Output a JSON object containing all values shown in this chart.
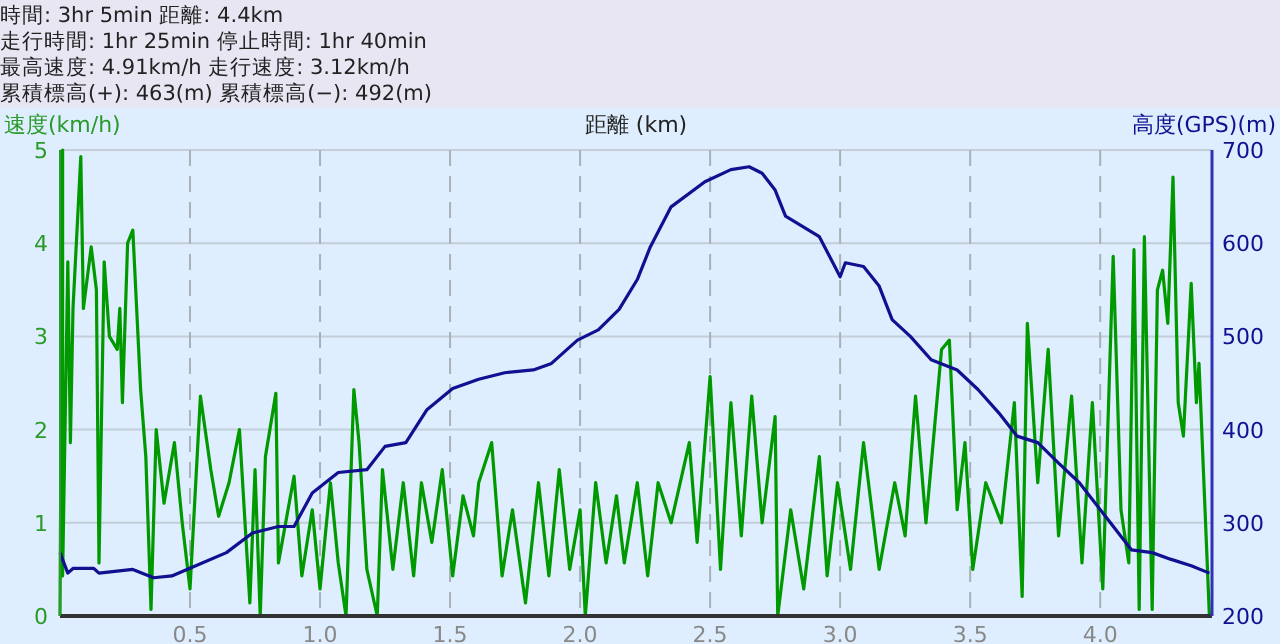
{
  "chart_data": {
    "type": "line",
    "annotations": [
      "時間: 3hr 5min  距離: 4.4km",
      "走行時間: 1hr 25min  停止時間: 1hr 40min",
      "最高速度: 4.91km/h  走行速度: 3.12km/h",
      "累積標高(+): 463(m)  累積標高(−): 492(m)"
    ],
    "xlabel": "距離 (km)",
    "ylabel": "速度(km/h)",
    "y2label": "高度(GPS)(m)",
    "xlim": [
      0,
      4.43
    ],
    "xticks": [
      0.5,
      {
        "value": 1,
        "label": "1.0"
      },
      1.5,
      {
        "value": 2,
        "label": "2.0"
      },
      2.5,
      {
        "value": 3,
        "label": "3.0"
      },
      3.5,
      {
        "value": 4,
        "label": "4.0"
      }
    ],
    "ylim": [
      0,
      5
    ],
    "yticks": [
      0,
      1,
      2,
      3,
      4,
      5
    ],
    "y2lim": [
      200,
      700
    ],
    "y2ticks": [
      200,
      300,
      400,
      500,
      600,
      700
    ],
    "grid": true,
    "marker": "none",
    "line_style": "solid",
    "series": [
      {
        "color": "#009900",
        "axis": "y",
        "x": [
          0,
          0.01,
          0.01,
          0.03,
          0.04,
          0.05,
          0.08,
          0.09,
          0.12,
          0.14,
          0.15,
          0.17,
          0.19,
          0.22,
          0.23,
          0.24,
          0.26,
          0.28,
          0.31,
          0.33,
          0.35,
          0.37,
          0.4,
          0.44,
          0.47,
          0.5,
          0.54,
          0.58,
          0.61,
          0.65,
          0.69,
          0.73,
          0.75,
          0.77,
          0.79,
          0.83,
          0.84,
          0.9,
          0.93,
          0.97,
          1.0,
          1.04,
          1.07,
          1.1,
          1.13,
          1.15,
          1.18,
          1.22,
          1.24,
          1.28,
          1.32,
          1.36,
          1.39,
          1.43,
          1.47,
          1.51,
          1.55,
          1.59,
          1.61,
          1.66,
          1.7,
          1.74,
          1.79,
          1.84,
          1.88,
          1.92,
          1.96,
          2.0,
          2.02,
          2.06,
          2.1,
          2.14,
          2.17,
          2.22,
          2.26,
          2.3,
          2.35,
          2.42,
          2.45,
          2.5,
          2.54,
          2.58,
          2.62,
          2.66,
          2.7,
          2.75,
          2.76,
          2.81,
          2.86,
          2.92,
          2.95,
          2.99,
          3.04,
          3.09,
          3.15,
          3.21,
          3.25,
          3.29,
          3.33,
          3.39,
          3.42,
          3.45,
          3.48,
          3.51,
          3.56,
          3.62,
          3.67,
          3.7,
          3.72,
          3.76,
          3.8,
          3.84,
          3.89,
          3.93,
          3.97,
          4.01,
          4.05,
          4.08,
          4.11,
          4.13,
          4.15,
          4.17,
          4.2,
          4.22,
          4.24,
          4.26,
          4.28,
          4.3,
          4.32,
          4.35,
          4.37,
          4.38,
          4.42
        ],
        "values": [
          0,
          5.0,
          0.43,
          3.8,
          1.86,
          3.3,
          4.93,
          3.3,
          3.96,
          3.5,
          0.57,
          3.8,
          3.0,
          2.86,
          3.3,
          2.29,
          4.0,
          4.14,
          2.43,
          1.71,
          0.07,
          2.0,
          1.21,
          1.86,
          1.0,
          0.29,
          2.36,
          1.57,
          1.07,
          1.43,
          2.0,
          0.14,
          1.57,
          0,
          1.71,
          2.39,
          0.57,
          1.5,
          0.43,
          1.14,
          0.29,
          1.43,
          0.57,
          0,
          2.43,
          1.86,
          0.5,
          0,
          1.57,
          0.5,
          1.43,
          0.43,
          1.43,
          0.79,
          1.57,
          0.43,
          1.29,
          0.86,
          1.43,
          1.86,
          0.43,
          1.14,
          0.14,
          1.43,
          0.43,
          1.57,
          0.5,
          1.14,
          0,
          1.43,
          0.57,
          1.29,
          0.57,
          1.43,
          0.43,
          1.43,
          1.0,
          1.86,
          0.79,
          2.57,
          0.5,
          2.29,
          0.86,
          2.36,
          1.0,
          2.14,
          0,
          1.14,
          0.29,
          1.71,
          0.43,
          1.43,
          0.5,
          1.86,
          0.5,
          1.43,
          0.86,
          2.36,
          1.0,
          2.86,
          2.96,
          1.14,
          1.86,
          0.5,
          1.43,
          1.0,
          2.29,
          0.21,
          3.14,
          1.43,
          2.86,
          0.86,
          2.36,
          0.57,
          2.29,
          0.29,
          3.86,
          1.14,
          0.57,
          3.93,
          0.07,
          4.07,
          0.07,
          3.5,
          3.71,
          3.14,
          4.71,
          2.29,
          1.93,
          3.57,
          2.29,
          2.71,
          0
        ]
      },
      {
        "color": "#101090",
        "axis": "y2",
        "x": [
          0,
          0.03,
          0.05,
          0.13,
          0.15,
          0.28,
          0.36,
          0.43,
          0.54,
          0.64,
          0.74,
          0.84,
          0.9,
          0.97,
          1.07,
          1.18,
          1.25,
          1.33,
          1.41,
          1.51,
          1.61,
          1.71,
          1.82,
          1.89,
          1.99,
          2.07,
          2.15,
          2.22,
          2.27,
          2.35,
          2.48,
          2.58,
          2.65,
          2.7,
          2.75,
          2.79,
          2.92,
          3.0,
          3.02,
          3.09,
          3.15,
          3.2,
          3.27,
          3.35,
          3.45,
          3.53,
          3.61,
          3.68,
          3.76,
          3.84,
          3.92,
          4.02,
          4.12,
          4.2,
          4.27,
          4.35,
          4.42
        ],
        "values": [
          268,
          246,
          251,
          251,
          246,
          250,
          241,
          243,
          256,
          268,
          289,
          296,
          296,
          332,
          354,
          357,
          382,
          386,
          421,
          444,
          454,
          461,
          464,
          471,
          496,
          507,
          529,
          561,
          596,
          639,
          666,
          679,
          682,
          675,
          657,
          629,
          607,
          564,
          579,
          575,
          554,
          518,
          500,
          475,
          464,
          443,
          418,
          393,
          386,
          364,
          343,
          307,
          271,
          268,
          261,
          254,
          246
        ]
      }
    ]
  }
}
